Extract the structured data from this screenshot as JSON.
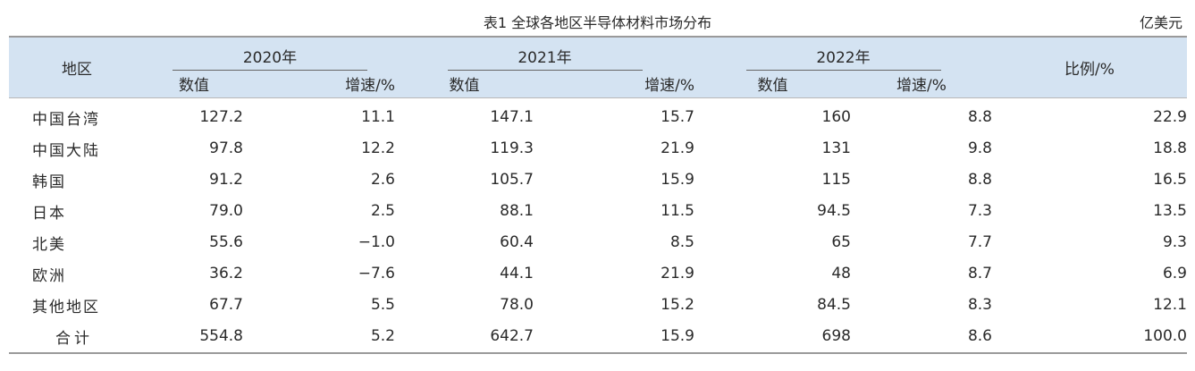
{
  "title": "表1  全球各地区半导体材料市场分布",
  "unit": "亿美元",
  "header": {
    "region": "地区",
    "ratio": "比例/%",
    "years": [
      "2020年",
      "2021年",
      "2022年"
    ],
    "value": "数值",
    "growth": "增速/%"
  },
  "rows": [
    {
      "region": "中国台湾",
      "v2020": "127.2",
      "g2020": "11.1",
      "v2021": "147.1",
      "g2021": "15.7",
      "v2022": "160",
      "g2022": "8.8",
      "ratio": "22.9"
    },
    {
      "region": "中国大陆",
      "v2020": "97.8",
      "g2020": "12.2",
      "v2021": "119.3",
      "g2021": "21.9",
      "v2022": "131",
      "g2022": "9.8",
      "ratio": "18.8"
    },
    {
      "region": "韩国",
      "v2020": "91.2",
      "g2020": "2.6",
      "v2021": "105.7",
      "g2021": "15.9",
      "v2022": "115",
      "g2022": "8.8",
      "ratio": "16.5"
    },
    {
      "region": "日本",
      "v2020": "79.0",
      "g2020": "2.5",
      "v2021": "88.1",
      "g2021": "11.5",
      "v2022": "94.5",
      "g2022": "7.3",
      "ratio": "13.5"
    },
    {
      "region": "北美",
      "v2020": "55.6",
      "g2020": "−1.0",
      "v2021": "60.4",
      "g2021": "8.5",
      "v2022": "65",
      "g2022": "7.7",
      "ratio": "9.3"
    },
    {
      "region": "欧洲",
      "v2020": "36.2",
      "g2020": "−7.6",
      "v2021": "44.1",
      "g2021": "21.9",
      "v2022": "48",
      "g2022": "8.7",
      "ratio": "6.9"
    },
    {
      "region": "其他地区",
      "v2020": "67.7",
      "g2020": "5.5",
      "v2021": "78.0",
      "g2021": "15.2",
      "v2022": "84.5",
      "g2022": "8.3",
      "ratio": "12.1"
    },
    {
      "region": "合计",
      "v2020": "554.8",
      "g2020": "5.2",
      "v2021": "642.7",
      "g2021": "15.9",
      "v2022": "698",
      "g2022": "8.6",
      "ratio": "100.0"
    }
  ]
}
